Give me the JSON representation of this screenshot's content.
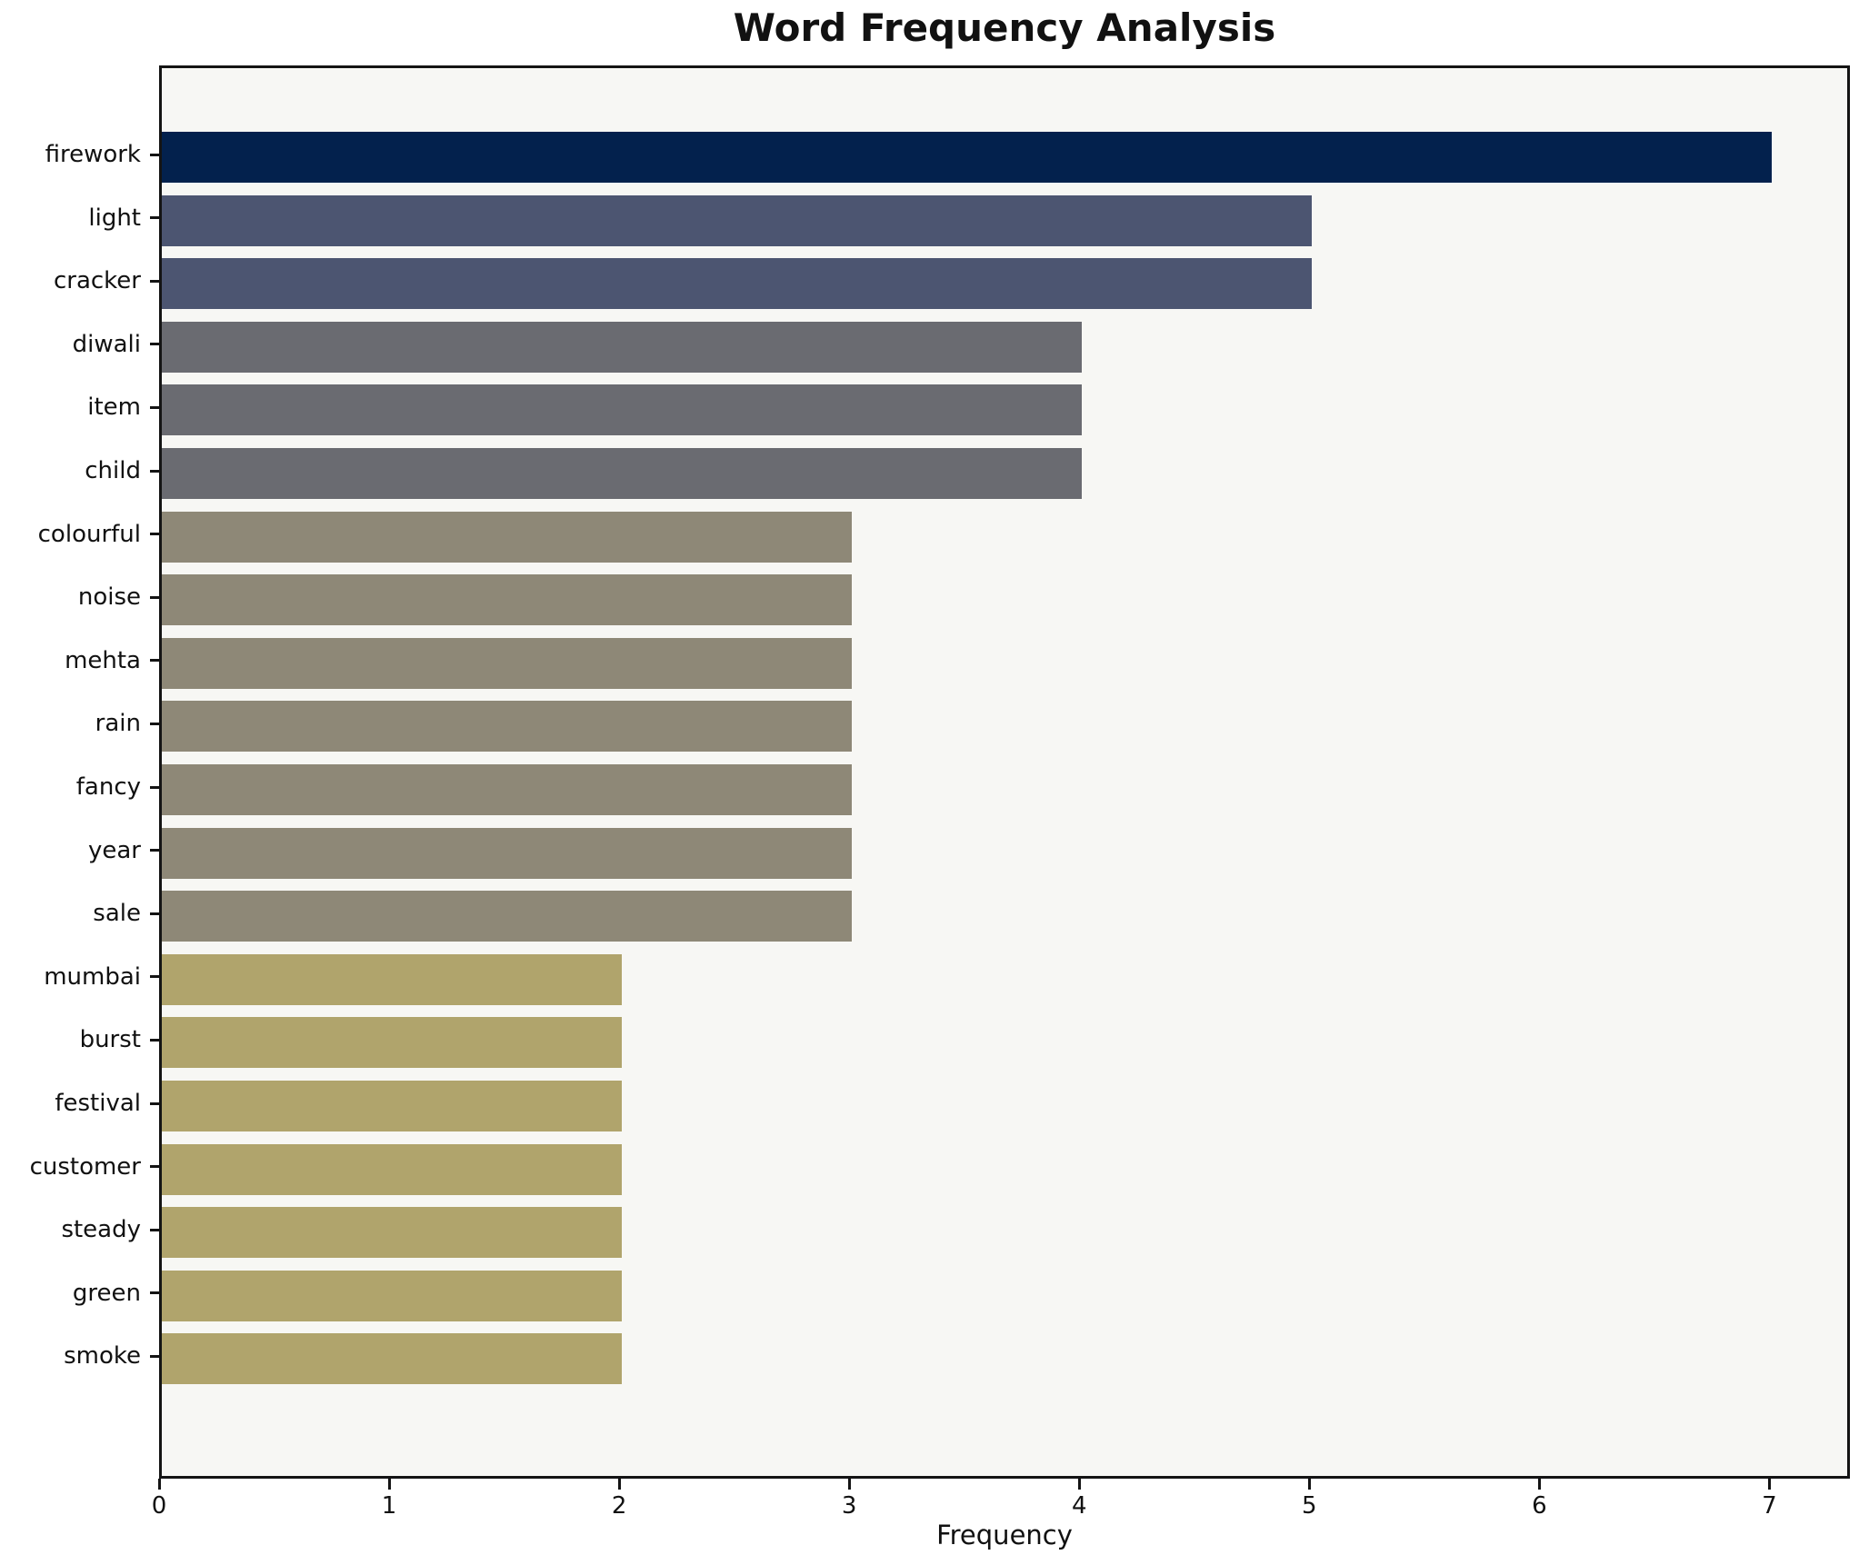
{
  "title": "Word Frequency Analysis",
  "x_axis_label": "Frequency",
  "colors": {
    "plot_background": "#f7f7f4",
    "figure_background": "#ffffff",
    "axis": "#141414",
    "text": "#111111",
    "bar_freq_7": "#03214d",
    "bar_freq_5": "#4c5571",
    "bar_freq_4": "#6a6b71",
    "bar_freq_3": "#8e8877",
    "bar_freq_2": "#b0a46c"
  },
  "chart_data": {
    "type": "bar",
    "orientation": "horizontal",
    "title": "Word Frequency Analysis",
    "xlabel": "Frequency",
    "ylabel": "",
    "categories": [
      "firework",
      "light",
      "cracker",
      "diwali",
      "item",
      "child",
      "colourful",
      "noise",
      "mehta",
      "rain",
      "fancy",
      "year",
      "sale",
      "mumbai",
      "burst",
      "festival",
      "customer",
      "steady",
      "green",
      "smoke"
    ],
    "values": [
      7,
      5,
      5,
      4,
      4,
      4,
      3,
      3,
      3,
      3,
      3,
      3,
      3,
      2,
      2,
      2,
      2,
      2,
      2,
      2
    ],
    "bar_colors": [
      "#03214d",
      "#4c5571",
      "#4c5571",
      "#6a6b71",
      "#6a6b71",
      "#6a6b71",
      "#8e8877",
      "#8e8877",
      "#8e8877",
      "#8e8877",
      "#8e8877",
      "#8e8877",
      "#8e8877",
      "#b0a46c",
      "#b0a46c",
      "#b0a46c",
      "#b0a46c",
      "#b0a46c",
      "#b0a46c",
      "#b0a46c"
    ],
    "xticks": [
      "0",
      "1",
      "2",
      "3",
      "4",
      "5",
      "6",
      "7"
    ],
    "xlim": [
      0,
      7.35
    ],
    "grid": false,
    "legend": "none"
  }
}
